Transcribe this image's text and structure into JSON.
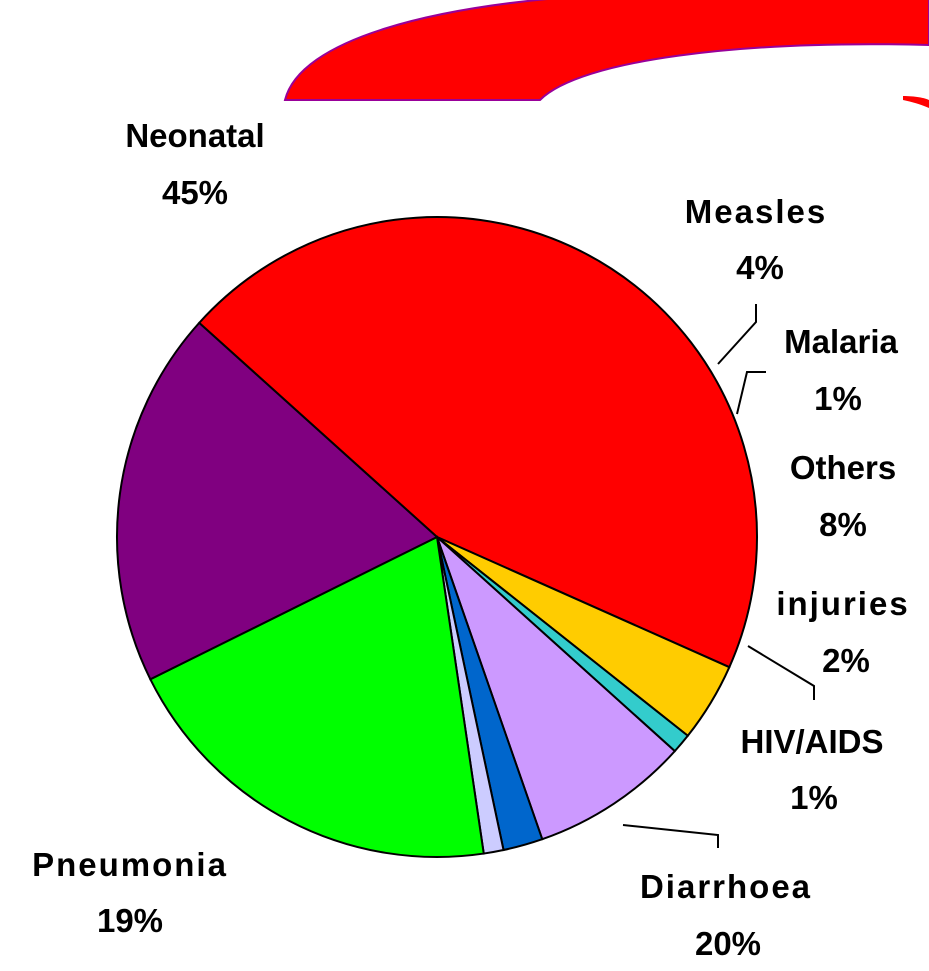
{
  "chart_data": {
    "type": "pie",
    "title": "",
    "slices": [
      {
        "label": "Neonatal",
        "value": 45,
        "value_label": "45%",
        "color": "#ff0000"
      },
      {
        "label": "Measles",
        "value": 4,
        "value_label": "4%",
        "color": "#ffcc00"
      },
      {
        "label": "Malaria",
        "value": 1,
        "value_label": "1%",
        "color": "#33cccc"
      },
      {
        "label": "Others",
        "value": 8,
        "value_label": "8%",
        "color": "#cc99ff"
      },
      {
        "label": "injuries",
        "value": 2,
        "value_label": "2%",
        "color": "#0066cc"
      },
      {
        "label": "HIV/AIDS",
        "value": 1,
        "value_label": "1%",
        "color": "#ccccff"
      },
      {
        "label": "Diarrhoea",
        "value": 20,
        "value_label": "20%",
        "color": "#00ff00"
      },
      {
        "label": "Pneumonia",
        "value": 19,
        "value_label": "19%",
        "color": "#800080"
      }
    ],
    "legend": "none"
  },
  "decoration": {
    "banner_color": "#ff0000",
    "banner_edge_color": "#990099"
  }
}
